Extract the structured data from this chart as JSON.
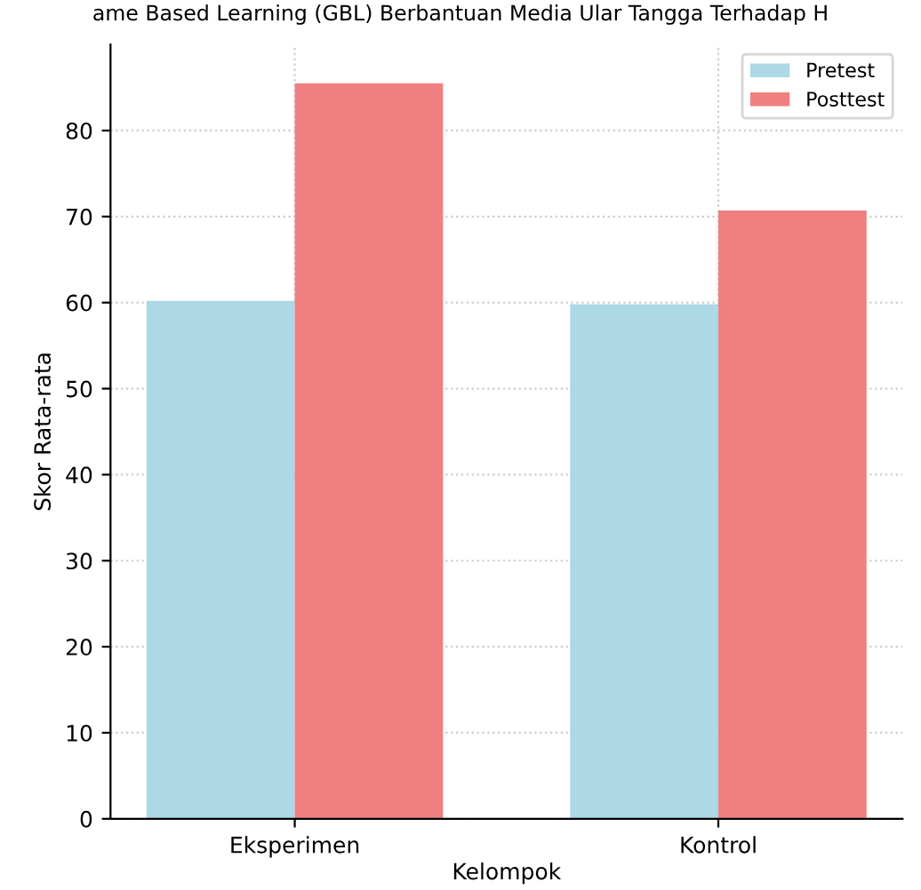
{
  "chart_data": {
    "type": "bar",
    "title": "ame Based Learning (GBL) Berbantuan Media Ular Tangga Terhadap H",
    "xlabel": "Kelompok",
    "ylabel": "Skor Rata-rata",
    "categories": [
      "Eksperimen",
      "Kontrol"
    ],
    "series": [
      {
        "name": "Pretest",
        "color": "#add8e6",
        "values": [
          60.2,
          59.8
        ]
      },
      {
        "name": "Posttest",
        "color": "#f08080",
        "values": [
          85.5,
          70.7
        ]
      }
    ],
    "ylim": [
      0,
      90
    ],
    "yticks": [
      0,
      10,
      20,
      30,
      40,
      50,
      60,
      70,
      80
    ],
    "grid": true,
    "legend": "top right"
  }
}
